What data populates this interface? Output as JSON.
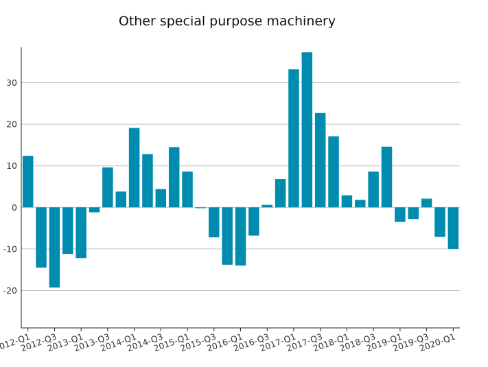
{
  "chart_data": {
    "type": "bar",
    "title": "Other special purpose machinery",
    "xlabel": "",
    "ylabel": "",
    "categories": [
      "2012-Q1",
      "2012-Q2",
      "2012-Q3",
      "2012-Q4",
      "2013-Q1",
      "2013-Q2",
      "2013-Q3",
      "2013-Q4",
      "2014-Q1",
      "2014-Q2",
      "2014-Q3",
      "2014-Q4",
      "2015-Q1",
      "2015-Q2",
      "2015-Q3",
      "2015-Q4",
      "2016-Q1",
      "2016-Q2",
      "2016-Q3",
      "2016-Q4",
      "2017-Q1",
      "2017-Q2",
      "2017-Q3",
      "2017-Q4",
      "2018-Q1",
      "2018-Q2",
      "2018-Q3",
      "2018-Q4",
      "2019-Q1",
      "2019-Q2",
      "2019-Q3",
      "2019-Q4",
      "2020-Q1"
    ],
    "tick_labels": [
      "2012-Q1",
      "2012-Q3",
      "2013-Q1",
      "2013-Q3",
      "2014-Q1",
      "2014-Q3",
      "2015-Q1",
      "2015-Q3",
      "2016-Q1",
      "2016-Q3",
      "2017-Q1",
      "2017-Q3",
      "2018-Q1",
      "2018-Q3",
      "2019-Q1",
      "2019-Q3",
      "2020-Q1"
    ],
    "values": [
      12.4,
      -14.5,
      -19.3,
      -11.2,
      -12.2,
      -1.2,
      9.6,
      3.8,
      19.1,
      12.8,
      4.4,
      14.5,
      8.6,
      -0.2,
      -7.2,
      -13.8,
      -14.0,
      -6.8,
      0.6,
      6.8,
      33.2,
      37.3,
      22.7,
      17.1,
      2.9,
      1.8,
      8.6,
      14.6,
      -3.5,
      -2.8,
      2.1,
      -7.1,
      -10.0
    ],
    "yticks": [
      -20,
      -10,
      0,
      10,
      20,
      30
    ],
    "ylim": [
      -29,
      38.5
    ],
    "grid": true,
    "colors": {
      "bar": "#008caf",
      "grid": "#c4c4c4",
      "axis": "#222222"
    }
  }
}
